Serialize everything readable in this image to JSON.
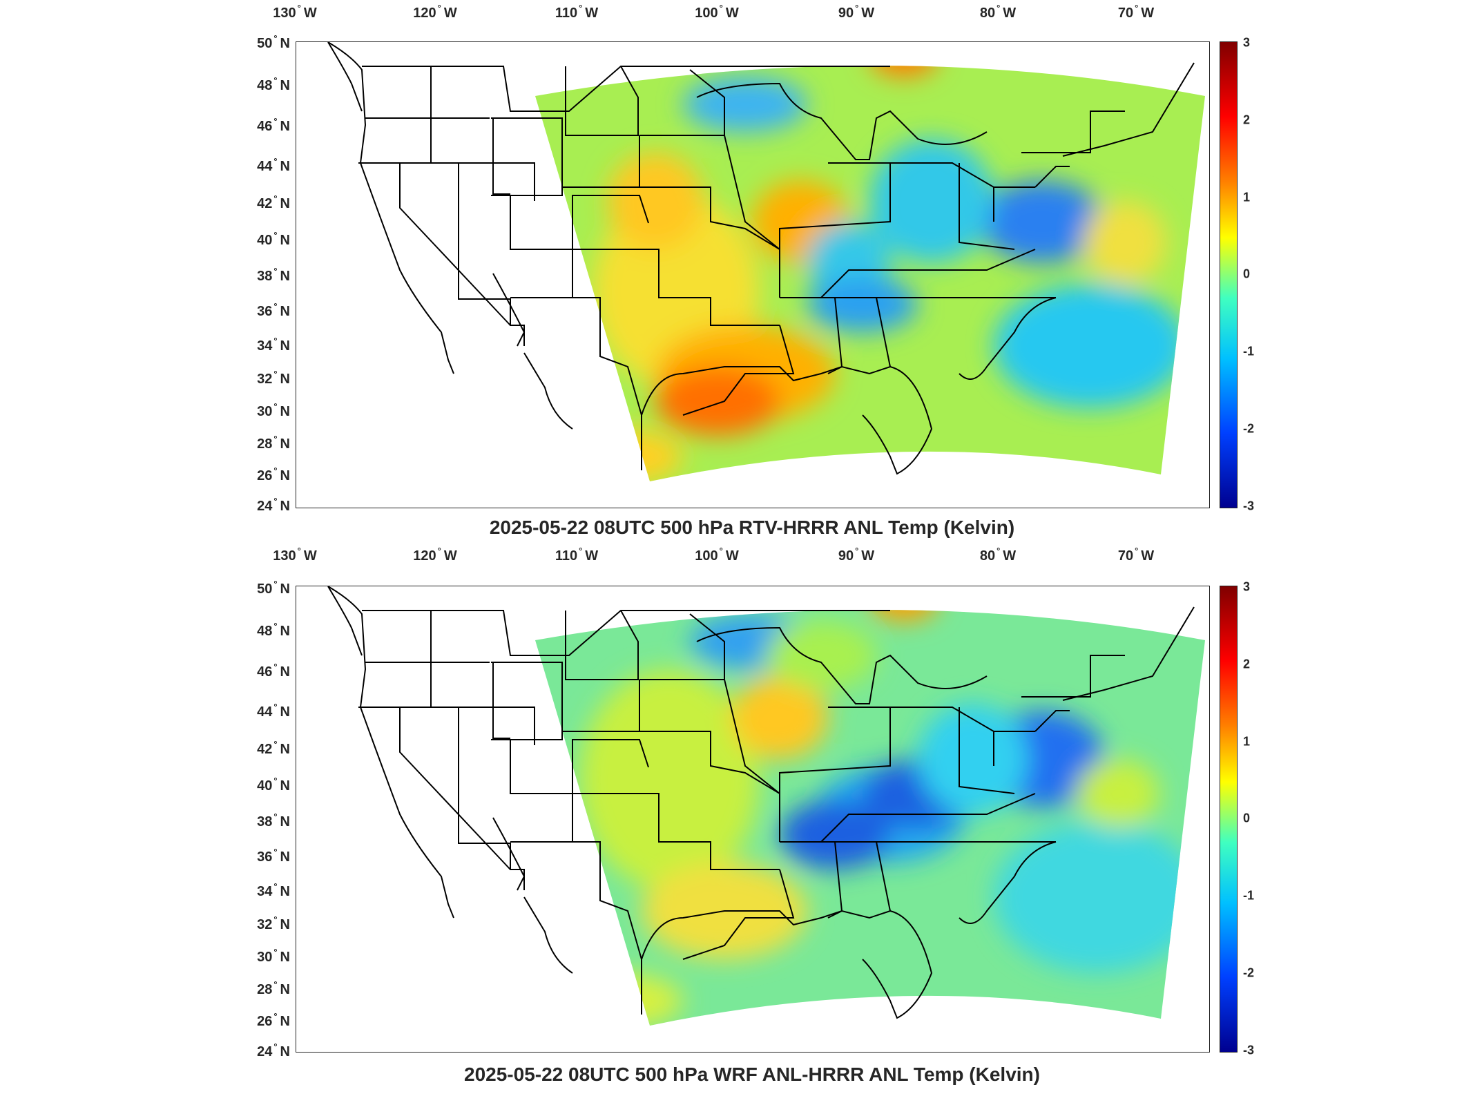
{
  "lon_labels": [
    "130",
    "120",
    "110",
    "100",
    "90",
    "80",
    "70"
  ],
  "lon_hemisphere": "W",
  "lat_labels": [
    "50",
    "48",
    "46",
    "44",
    "42",
    "40",
    "38",
    "36",
    "34",
    "32",
    "30",
    "28",
    "26",
    "24"
  ],
  "lat_hemisphere": "N",
  "degree_symbol": "°",
  "colorbar": {
    "ticks": [
      "3",
      "2",
      "1",
      "0",
      "-1",
      "-2",
      "-3"
    ],
    "range": [
      -3,
      3
    ],
    "colormap": "jet"
  },
  "panels": [
    {
      "title": "2025-05-22 08UTC 500 hPa RTV-HRRR ANL Temp (Kelvin)"
    },
    {
      "title": "2025-05-22 08UTC 500 hPa WRF ANL-HRRR ANL Temp (Kelvin)"
    }
  ],
  "colors": {
    "warm": "#ff8c00",
    "neutral": "#b8f04a",
    "cool": "#20c8f0",
    "cold": "#1040e0",
    "border": "#000000"
  }
}
